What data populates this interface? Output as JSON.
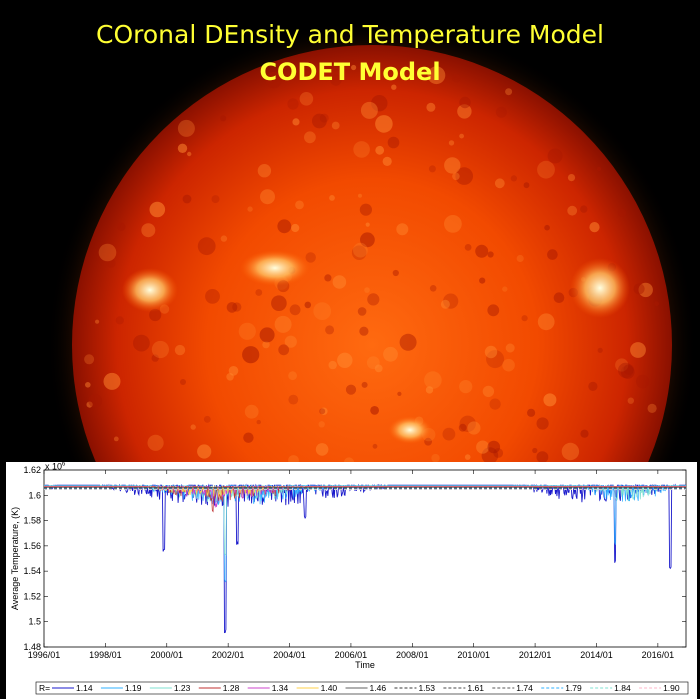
{
  "header": {
    "title": "COronal DEnsity and Temperature Model",
    "subtitle": "CODET Model"
  },
  "chart_data": {
    "type": "line",
    "title": "",
    "xlabel": "Time",
    "ylabel": "Average Temperature, (K)",
    "y_multiplier": "x 10",
    "y_exponent": "6",
    "ylim": [
      1.48,
      1.62
    ],
    "yticks": [
      "1.48",
      "1.5",
      "1.52",
      "1.54",
      "1.56",
      "1.58",
      "1.6",
      "1.62"
    ],
    "xlim": [
      "1996/01",
      "2016/12"
    ],
    "xticks": [
      "1996/01",
      "1998/01",
      "2000/01",
      "2002/01",
      "2004/01",
      "2006/01",
      "2008/01",
      "2010/01",
      "2012/01",
      "2014/01",
      "2016/01"
    ],
    "legend_placement": "bottom",
    "legend_prefix": "R=",
    "series": [
      {
        "name": "1.14",
        "color": "#1a1acc",
        "dash": "solid",
        "active": [
          [
            1996.0,
            1996.4,
            0.1
          ],
          [
            1997.7,
            2007.2,
            0.5
          ],
          [
            2011.3,
            2016.7,
            0.4
          ]
        ],
        "dips": [
          [
            1999.9,
            1.555
          ],
          [
            2001.9,
            1.49
          ],
          [
            2002.3,
            1.56
          ],
          [
            2004.5,
            1.58
          ],
          [
            2014.6,
            1.545
          ],
          [
            2016.4,
            1.54
          ]
        ]
      },
      {
        "name": "1.19",
        "color": "#2fb0ff",
        "dash": "solid",
        "active": [
          [
            1999.0,
            2005.5,
            0.45
          ],
          [
            2013.5,
            2016.5,
            0.4
          ]
        ],
        "dips": [
          [
            2001.9,
            1.53
          ],
          [
            2014.6,
            1.56
          ]
        ]
      },
      {
        "name": "1.23",
        "color": "#7fe0d0",
        "dash": "solid",
        "active": [
          [
            1999.2,
            2005.0,
            0.4
          ],
          [
            2013.7,
            2016.3,
            0.35
          ]
        ],
        "dips": [
          [
            2001.9,
            1.55
          ]
        ]
      },
      {
        "name": "1.28",
        "color": "#c03030",
        "dash": "solid",
        "active": [
          [
            1999.4,
            2004.5,
            0.35
          ]
        ],
        "dips": [
          [
            2001.5,
            1.585
          ]
        ]
      },
      {
        "name": "1.34",
        "color": "#cc44cc",
        "dash": "solid",
        "active": [
          [
            1999.5,
            2004.0,
            0.3
          ]
        ],
        "dips": [
          [
            2001.6,
            1.59
          ]
        ]
      },
      {
        "name": "1.40",
        "color": "#ffd24a",
        "dash": "solid",
        "active": [
          [
            1999.6,
            2003.5,
            0.25
          ]
        ],
        "dips": []
      },
      {
        "name": "1.46",
        "color": "#606060",
        "dash": "solid",
        "active": [],
        "dips": []
      },
      {
        "name": "1.53",
        "color": "#3a3a3a",
        "dash": "dashed",
        "active": [],
        "dips": []
      },
      {
        "name": "1.61",
        "color": "#4a4a4a",
        "dash": "dashed",
        "active": [],
        "dips": []
      },
      {
        "name": "1.74",
        "color": "#5a5a5a",
        "dash": "dashed",
        "active": [],
        "dips": []
      },
      {
        "name": "1.79",
        "color": "#2fb0ff",
        "dash": "dashed",
        "active": [],
        "dips": []
      },
      {
        "name": "1.84",
        "color": "#7fe0d0",
        "dash": "dashed",
        "active": [],
        "dips": []
      },
      {
        "name": "1.90",
        "color": "#ffb6c8",
        "dash": "dashed",
        "active": [],
        "dips": []
      }
    ]
  }
}
